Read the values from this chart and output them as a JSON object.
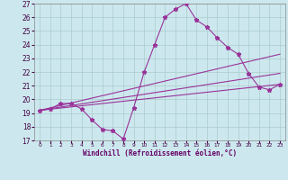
{
  "xlabel": "Windchill (Refroidissement éolien,°C)",
  "background_color": "#cce8ee",
  "grid_color": "#aacccc",
  "line_color": "#993399",
  "xlim": [
    -0.5,
    23.5
  ],
  "ylim": [
    17,
    27
  ],
  "yticks": [
    17,
    18,
    19,
    20,
    21,
    22,
    23,
    24,
    25,
    26,
    27
  ],
  "xticks": [
    0,
    1,
    2,
    3,
    4,
    5,
    6,
    7,
    8,
    9,
    10,
    11,
    12,
    13,
    14,
    15,
    16,
    17,
    18,
    19,
    20,
    21,
    22,
    23
  ],
  "series": [
    {
      "x": [
        0,
        1,
        2,
        3,
        4,
        5,
        6,
        7,
        8,
        9,
        10,
        11,
        12,
        13,
        14,
        15,
        16,
        17,
        18,
        19,
        20,
        21,
        22,
        23
      ],
      "y": [
        19.2,
        19.3,
        19.7,
        19.7,
        19.3,
        18.5,
        17.8,
        17.7,
        17.1,
        19.4,
        22.0,
        24.0,
        26.0,
        26.6,
        27.0,
        25.8,
        25.3,
        24.5,
        23.8,
        23.3,
        21.9,
        20.9,
        20.7,
        21.1
      ],
      "has_markers": true
    },
    {
      "x": [
        0,
        23
      ],
      "y": [
        19.2,
        23.3
      ],
      "has_markers": false
    },
    {
      "x": [
        0,
        23
      ],
      "y": [
        19.2,
        21.9
      ],
      "has_markers": false
    },
    {
      "x": [
        0,
        23
      ],
      "y": [
        19.2,
        21.1
      ],
      "has_markers": false
    }
  ]
}
